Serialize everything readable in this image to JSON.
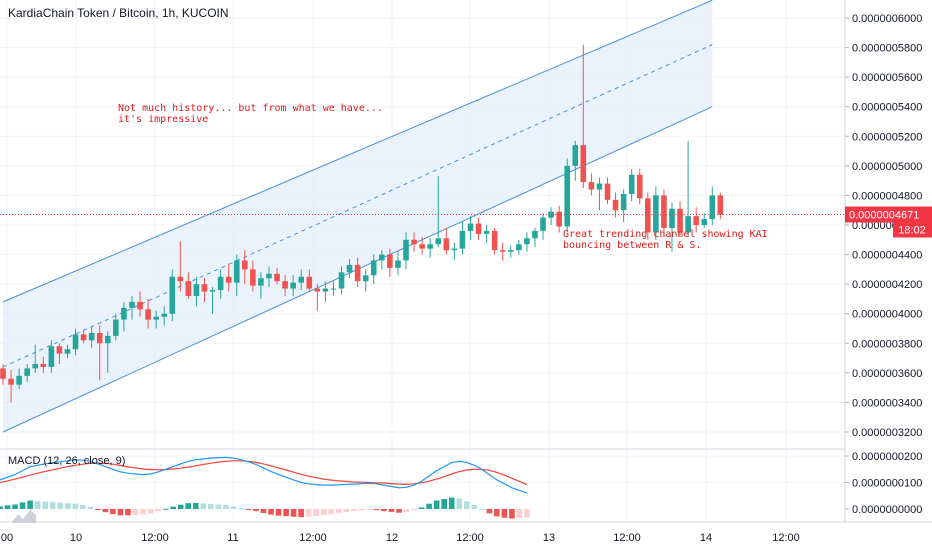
{
  "header": {
    "title": "KardiaChain Token / Bitcoin, 1h, KUCOIN"
  },
  "annotations": {
    "history_note": "Not much history... but from what we have...\nit's impressive",
    "channel_note": "Great trending channel showing KAI\nbouncing between R & S."
  },
  "price_axis": {
    "labels": [
      "0.0000006000",
      "0.0000005800",
      "0.0000005600",
      "0.0000005400",
      "0.0000005200",
      "0.0000005000",
      "0.0000004800",
      "0.0000004600",
      "0.0000004400",
      "0.0000004200",
      "0.0000004000",
      "0.0000003800",
      "0.0000003600",
      "0.0000003400",
      "0.0000003200"
    ],
    "current_price_label": "0.0000004671",
    "countdown_label": "18:02"
  },
  "macd": {
    "title": "MACD (12, 26, close, 9)",
    "axis_labels": [
      "0.0000000200",
      "0.0000000100",
      "0.0000000000"
    ]
  },
  "time_axis": {
    "labels": [
      "00",
      "10",
      "12:00",
      "11",
      "12:00",
      "12",
      "12:00",
      "13",
      "12:00",
      "14",
      "12:00"
    ]
  },
  "colors": {
    "up": "#26a69a",
    "down": "#ef5350",
    "channel_line": "#4a90d9",
    "channel_fill": "#e3eefb",
    "macd_line": "#2196f3",
    "signal_line": "#f44336",
    "price_line": "#f23645",
    "annotation_text": "#e01c1c"
  },
  "chart_data": {
    "type": "candlestick",
    "title": "KardiaChain Token / Bitcoin, 1h, KUCOIN",
    "y_range": [
      3.15e-07,
      6.12e-07
    ],
    "current_price": 4.671e-07,
    "candles_ohlc": [
      [
        3.63,
        3.66,
        3.52,
        3.56
      ],
      [
        3.56,
        3.62,
        3.4,
        3.52
      ],
      [
        3.52,
        3.63,
        3.49,
        3.58
      ],
      [
        3.58,
        3.66,
        3.54,
        3.63
      ],
      [
        3.63,
        3.79,
        3.6,
        3.66
      ],
      [
        3.66,
        3.71,
        3.6,
        3.64
      ],
      [
        3.64,
        3.82,
        3.6,
        3.78
      ],
      [
        3.78,
        3.8,
        3.66,
        3.73
      ],
      [
        3.73,
        3.79,
        3.7,
        3.76
      ],
      [
        3.76,
        3.9,
        3.72,
        3.86
      ],
      [
        3.86,
        3.89,
        3.8,
        3.82
      ],
      [
        3.82,
        3.91,
        3.77,
        3.87
      ],
      [
        3.87,
        3.92,
        3.55,
        3.8
      ],
      [
        3.8,
        3.88,
        3.6,
        3.85
      ],
      [
        3.85,
        4.0,
        3.82,
        3.96
      ],
      [
        3.96,
        4.08,
        3.88,
        4.04
      ],
      [
        4.04,
        4.12,
        3.96,
        4.08
      ],
      [
        4.08,
        4.15,
        3.98,
        4.03
      ],
      [
        4.03,
        4.1,
        3.9,
        3.96
      ],
      [
        3.96,
        4.02,
        3.9,
        3.98
      ],
      [
        3.98,
        4.05,
        3.92,
        4.0
      ],
      [
        4.0,
        4.3,
        3.95,
        4.25
      ],
      [
        4.25,
        4.49,
        4.15,
        4.22
      ],
      [
        4.22,
        4.28,
        4.1,
        4.12
      ],
      [
        4.12,
        4.25,
        4.05,
        4.2
      ],
      [
        4.2,
        4.24,
        4.08,
        4.15
      ],
      [
        4.15,
        4.18,
        4.0,
        4.16
      ],
      [
        4.16,
        4.3,
        4.1,
        4.25
      ],
      [
        4.25,
        4.34,
        4.15,
        4.21
      ],
      [
        4.21,
        4.4,
        4.12,
        4.36
      ],
      [
        4.36,
        4.43,
        4.2,
        4.3
      ],
      [
        4.3,
        4.36,
        4.15,
        4.19
      ],
      [
        4.19,
        4.28,
        4.1,
        4.24
      ],
      [
        4.24,
        4.32,
        4.18,
        4.27
      ],
      [
        4.27,
        4.31,
        4.2,
        4.22
      ],
      [
        4.22,
        4.26,
        4.12,
        4.17
      ],
      [
        4.17,
        4.26,
        4.12,
        4.21
      ],
      [
        4.21,
        4.3,
        4.16,
        4.25
      ],
      [
        4.25,
        4.3,
        4.15,
        4.17
      ],
      [
        4.17,
        4.2,
        4.02,
        4.15
      ],
      [
        4.15,
        4.22,
        4.08,
        4.17
      ],
      [
        4.17,
        4.22,
        4.12,
        4.17
      ],
      [
        4.17,
        4.32,
        4.13,
        4.28
      ],
      [
        4.28,
        4.37,
        4.24,
        4.33
      ],
      [
        4.33,
        4.38,
        4.18,
        4.22
      ],
      [
        4.22,
        4.3,
        4.15,
        4.26
      ],
      [
        4.26,
        4.4,
        4.2,
        4.36
      ],
      [
        4.36,
        4.43,
        4.3,
        4.4
      ],
      [
        4.4,
        4.44,
        4.25,
        4.31
      ],
      [
        4.31,
        4.42,
        4.26,
        4.36
      ],
      [
        4.36,
        4.55,
        4.3,
        4.5
      ],
      [
        4.5,
        4.55,
        4.42,
        4.47
      ],
      [
        4.47,
        4.52,
        4.4,
        4.44
      ],
      [
        4.44,
        4.51,
        4.38,
        4.47
      ],
      [
        4.47,
        4.93,
        4.45,
        4.51
      ],
      [
        4.51,
        4.58,
        4.4,
        4.43
      ],
      [
        4.43,
        4.48,
        4.36,
        4.44
      ],
      [
        4.44,
        4.62,
        4.4,
        4.56
      ],
      [
        4.56,
        4.66,
        4.5,
        4.61
      ],
      [
        4.61,
        4.65,
        4.5,
        4.54
      ],
      [
        4.54,
        4.6,
        4.48,
        4.56
      ],
      [
        4.56,
        4.58,
        4.4,
        4.43
      ],
      [
        4.43,
        4.48,
        4.36,
        4.42
      ],
      [
        4.42,
        4.46,
        4.38,
        4.43
      ],
      [
        4.43,
        4.5,
        4.4,
        4.47
      ],
      [
        4.47,
        4.55,
        4.42,
        4.51
      ],
      [
        4.51,
        4.58,
        4.45,
        4.56
      ],
      [
        4.56,
        4.68,
        4.5,
        4.65
      ],
      [
        4.65,
        4.72,
        4.6,
        4.69
      ],
      [
        4.69,
        4.73,
        4.55,
        4.59
      ],
      [
        4.59,
        5.05,
        4.55,
        5.0
      ],
      [
        5.0,
        5.17,
        4.9,
        5.14
      ],
      [
        5.14,
        5.82,
        4.85,
        4.89
      ],
      [
        4.89,
        4.95,
        4.8,
        4.84
      ],
      [
        4.84,
        4.92,
        4.7,
        4.88
      ],
      [
        4.88,
        4.92,
        4.74,
        4.77
      ],
      [
        4.77,
        4.82,
        4.65,
        4.7
      ],
      [
        4.7,
        4.84,
        4.62,
        4.81
      ],
      [
        4.81,
        4.98,
        4.76,
        4.94
      ],
      [
        4.94,
        4.98,
        4.74,
        4.78
      ],
      [
        4.78,
        4.82,
        4.5,
        4.55
      ],
      [
        4.55,
        4.86,
        4.5,
        4.8
      ],
      [
        4.8,
        4.84,
        4.52,
        4.58
      ],
      [
        4.58,
        4.75,
        4.42,
        4.71
      ],
      [
        4.71,
        4.76,
        4.52,
        4.55
      ],
      [
        4.55,
        5.17,
        4.52,
        4.66
      ],
      [
        4.66,
        4.72,
        4.55,
        4.6
      ],
      [
        4.6,
        4.68,
        4.58,
        4.64
      ],
      [
        4.64,
        4.86,
        4.6,
        4.8
      ],
      [
        4.8,
        4.82,
        4.64,
        4.67
      ]
    ],
    "channel": {
      "upper": [
        [
          0,
          4.08
        ],
        [
          88,
          6.12
        ]
      ],
      "lower": [
        [
          0,
          3.2
        ],
        [
          88,
          5.4
        ]
      ],
      "middle": [
        [
          0,
          3.64
        ],
        [
          88,
          5.82
        ]
      ]
    },
    "macd_series": {
      "macd": [
        11.0,
        12.0,
        13.0,
        14.5,
        16.0,
        16.5,
        17.0,
        17.5,
        17.8,
        18.2,
        18.5,
        18.4,
        18.0,
        17.0,
        16.0,
        15.0,
        14.0,
        13.5,
        13.2,
        13.0,
        13.2,
        14.0,
        15.0,
        16.0,
        17.0,
        18.0,
        18.6,
        18.9,
        19.2,
        19.4,
        19.5,
        19.2,
        18.6,
        17.8,
        16.8,
        15.5,
        14.2,
        13.0,
        12.0,
        11.0,
        10.0,
        9.5,
        9.2,
        9.0,
        9.0,
        9.1,
        9.3,
        9.4,
        9.6,
        9.7,
        9.5,
        9.0,
        8.5,
        8.0,
        8.2,
        9.0,
        10.5,
        12.5,
        14.5,
        16.0,
        17.5,
        18.0,
        17.6,
        16.5,
        15.0,
        13.0,
        11.0,
        9.5,
        8.0,
        7.0,
        6.0
      ],
      "signal": [
        10.0,
        10.6,
        11.3,
        12.0,
        12.8,
        13.5,
        14.2,
        14.8,
        15.4,
        16.0,
        16.5,
        16.9,
        17.2,
        17.3,
        17.2,
        16.9,
        16.4,
        15.9,
        15.5,
        15.1,
        14.9,
        14.8,
        14.9,
        15.1,
        15.4,
        15.8,
        16.3,
        16.8,
        17.3,
        17.7,
        18.0,
        18.2,
        18.2,
        18.0,
        17.6,
        17.0,
        16.3,
        15.5,
        14.7,
        13.9,
        13.1,
        12.4,
        11.8,
        11.3,
        10.9,
        10.6,
        10.4,
        10.2,
        10.1,
        10.0,
        9.9,
        9.8,
        9.6,
        9.4,
        9.3,
        9.5,
        9.9,
        10.5,
        11.3,
        12.2,
        13.2,
        14.1,
        14.7,
        15.0,
        15.0,
        14.6,
        13.8,
        12.8,
        11.6,
        10.4,
        9.2
      ]
    },
    "xlabel": "",
    "ylabel": ""
  }
}
